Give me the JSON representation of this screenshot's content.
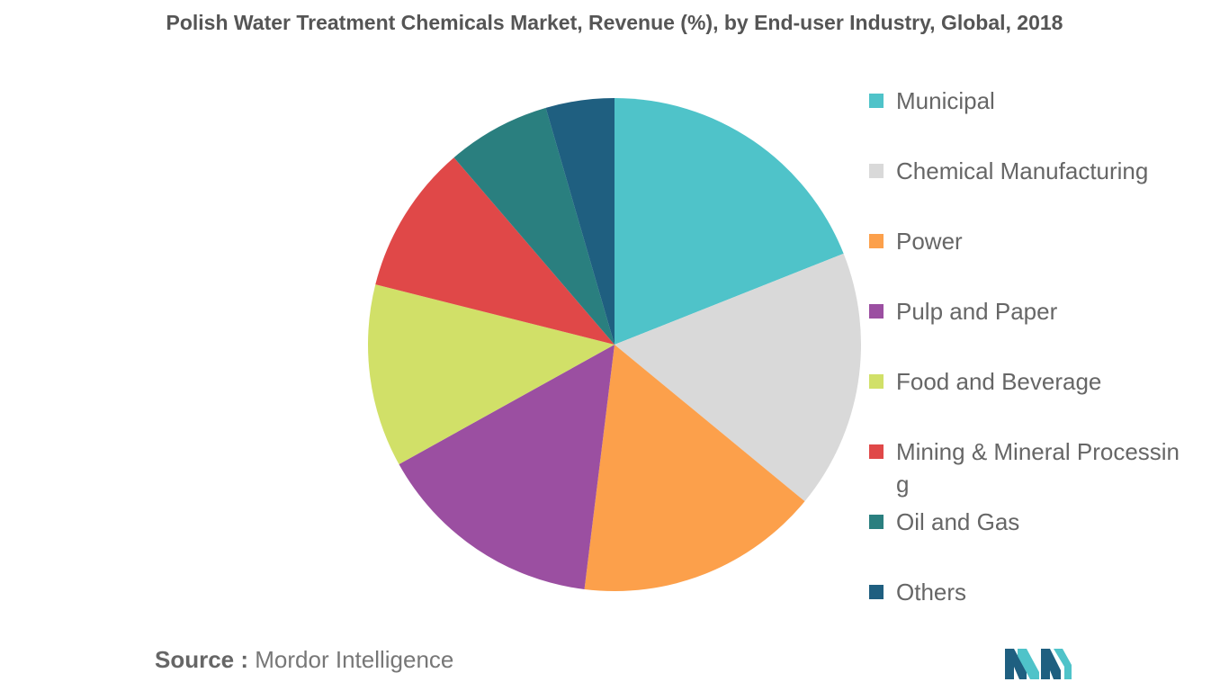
{
  "chart_data": {
    "type": "pie",
    "title": "Polish Water Treatment Chemicals Market, Revenue (%), by End-user Industry, Global, 2018",
    "legend_position": "right",
    "start_angle": "12 o'clock, clockwise",
    "categories": [
      "Municipal",
      "Chemical Manufacturing",
      "Power",
      "Pulp and Paper",
      "Food and Beverage",
      "Mining & Mineral Processing",
      "Oil and Gas",
      "Others"
    ],
    "values": [
      19.0,
      17.0,
      16.0,
      15.0,
      12.0,
      9.8,
      6.8,
      4.5
    ],
    "colors": [
      "#4fc3c9",
      "#d9d9d9",
      "#fca04b",
      "#9b4fa1",
      "#d1e068",
      "#e04848",
      "#2a7f7f",
      "#1f5f80"
    ]
  },
  "legend": [
    {
      "label": "Municipal",
      "color": "#4fc3c9"
    },
    {
      "label": "Chemical Manufacturing",
      "color": "#d9d9d9"
    },
    {
      "label": "Power",
      "color": "#fca04b"
    },
    {
      "label": "Pulp and Paper",
      "color": "#9b4fa1"
    },
    {
      "label": "Food and Beverage",
      "color": "#d1e068"
    },
    {
      "label": "Mining & Mineral Processing",
      "color": "#e04848"
    },
    {
      "label": "Oil and Gas",
      "color": "#2a7f7f"
    },
    {
      "label": "Others",
      "color": "#1f5f80"
    }
  ],
  "source": {
    "prefix": "Source :",
    "name": "Mordor Intelligence"
  },
  "logo": {
    "icon": "mordor-intelligence-logo-icon",
    "colors": [
      "#1f5f80",
      "#4fc3c9"
    ]
  }
}
